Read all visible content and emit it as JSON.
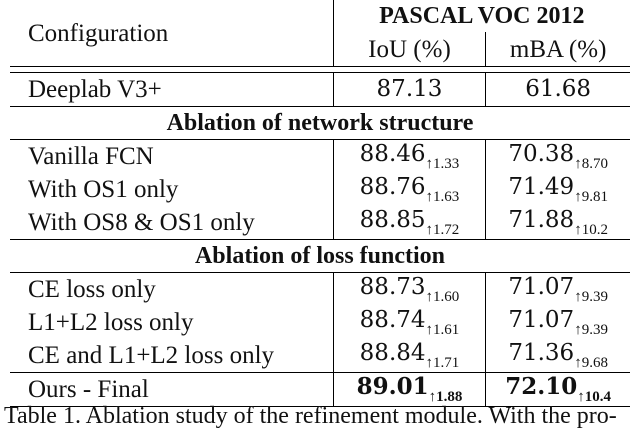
{
  "header": {
    "config_label": "Configuration",
    "dataset": "PASCAL VOC 2012",
    "col_iou": "IoU (%)",
    "col_mba": "mBA (%)"
  },
  "baseline": {
    "name": "Deeplab V3+",
    "iou": "87.13",
    "mba": "61.68"
  },
  "sections": [
    {
      "title": "Ablation of network structure",
      "rows": [
        {
          "name": "Vanilla FCN",
          "iou": "88.46",
          "iou_delta": "↑1.33",
          "mba": "70.38",
          "mba_delta": "↑8.70"
        },
        {
          "name": "With OS1 only",
          "iou": "88.76",
          "iou_delta": "↑1.63",
          "mba": "71.49",
          "mba_delta": "↑9.81"
        },
        {
          "name": "With OS8 & OS1 only",
          "iou": "88.85",
          "iou_delta": "↑1.72",
          "mba": "71.88",
          "mba_delta": "↑10.2"
        }
      ]
    },
    {
      "title": "Ablation of loss function",
      "rows": [
        {
          "name": "CE loss only",
          "iou": "88.73",
          "iou_delta": "↑1.60",
          "mba": "71.07",
          "mba_delta": "↑9.39"
        },
        {
          "name": "L1+L2 loss only",
          "iou": "88.74",
          "iou_delta": "↑1.61",
          "mba": "71.07",
          "mba_delta": "↑9.39"
        },
        {
          "name": "CE and L1+L2 loss only",
          "iou": "88.84",
          "iou_delta": "↑1.71",
          "mba": "71.36",
          "mba_delta": "↑9.68"
        }
      ]
    }
  ],
  "final": {
    "name": "Ours - Final",
    "iou": "89.01",
    "iou_delta": "↑1.88",
    "mba": "72.10",
    "mba_delta": "↑10.4"
  },
  "caption": "Table 1. Ablation study of the refinement module. With the pro-"
}
